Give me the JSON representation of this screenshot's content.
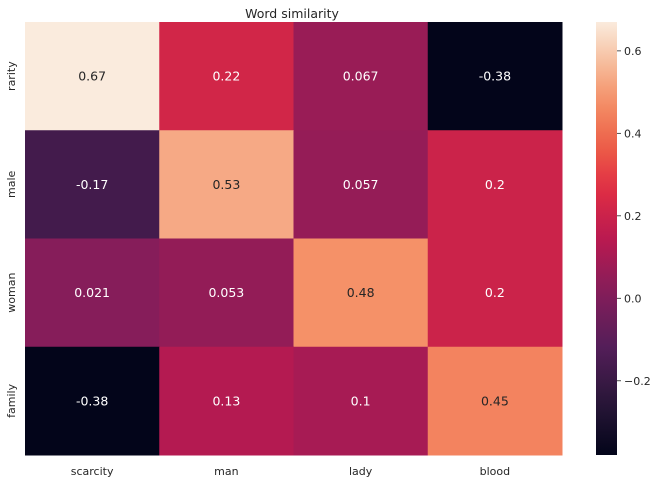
{
  "chart_data": {
    "type": "heatmap",
    "title": "Word similarity",
    "xlabel": "",
    "ylabel": "",
    "x_categories": [
      "scarcity",
      "man",
      "lady",
      "blood"
    ],
    "y_categories": [
      "rarity",
      "male",
      "woman",
      "family"
    ],
    "values": [
      [
        0.67,
        0.22,
        0.067,
        -0.38
      ],
      [
        -0.17,
        0.53,
        0.057,
        0.2
      ],
      [
        0.021,
        0.053,
        0.48,
        0.2
      ],
      [
        -0.38,
        0.13,
        0.1,
        0.45
      ]
    ],
    "value_labels": [
      [
        "0.67",
        "0.22",
        "0.067",
        "-0.38"
      ],
      [
        "-0.17",
        "0.53",
        "0.057",
        "0.2"
      ],
      [
        "0.021",
        "0.053",
        "0.48",
        "0.2"
      ],
      [
        "-0.38",
        "0.13",
        "0.1",
        "0.45"
      ]
    ],
    "colorbar": {
      "min": -0.38,
      "max": 0.67,
      "ticks": [
        -0.2,
        0.0,
        0.2,
        0.4,
        0.6
      ],
      "tick_labels": [
        "−0.2",
        "0.0",
        "0.2",
        "0.4",
        "0.6"
      ],
      "colormap": "rocket"
    },
    "grid": false,
    "legend": "colorbar-right"
  }
}
